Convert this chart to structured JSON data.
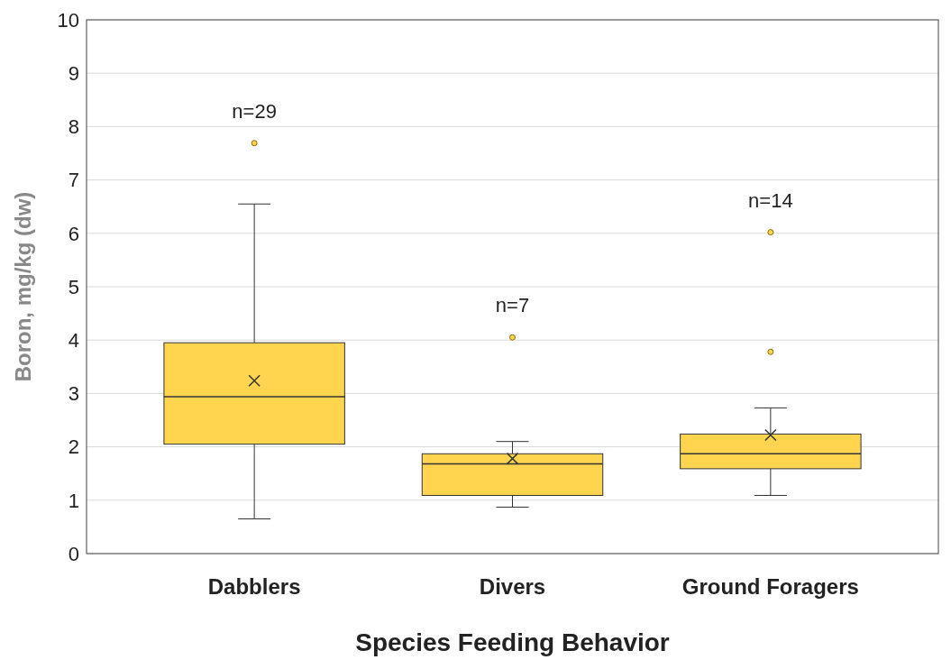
{
  "chart_data": {
    "type": "box",
    "xlabel": "Species Feeding Behavior",
    "ylabel": "Boron, mg/kg (dw)",
    "categories": [
      "Dabblers",
      "Divers",
      "Ground Foragers"
    ],
    "series": [
      {
        "color": "#ffd54f",
        "boxes": [
          {
            "low": 0.65,
            "q1": 2.05,
            "median": 2.94,
            "q3": 3.95,
            "high": 6.55,
            "mean": 3.24,
            "outliers": [
              7.69
            ]
          },
          {
            "low": 0.87,
            "q1": 1.09,
            "median": 1.68,
            "q3": 1.87,
            "high": 2.1,
            "mean": 1.78,
            "outliers": [
              4.05
            ]
          },
          {
            "low": 1.09,
            "q1": 1.59,
            "median": 1.87,
            "q3": 2.24,
            "high": 2.73,
            "mean": 2.22,
            "outliers": [
              6.02,
              3.78
            ]
          }
        ]
      }
    ],
    "ylim": [
      0,
      10
    ],
    "yticks": [
      0,
      1,
      2,
      3,
      4,
      5,
      6,
      7,
      8,
      9,
      10
    ],
    "grid": "y",
    "marker": "cross",
    "annotations": [
      "n=29",
      "n=7",
      "n=14"
    ]
  }
}
